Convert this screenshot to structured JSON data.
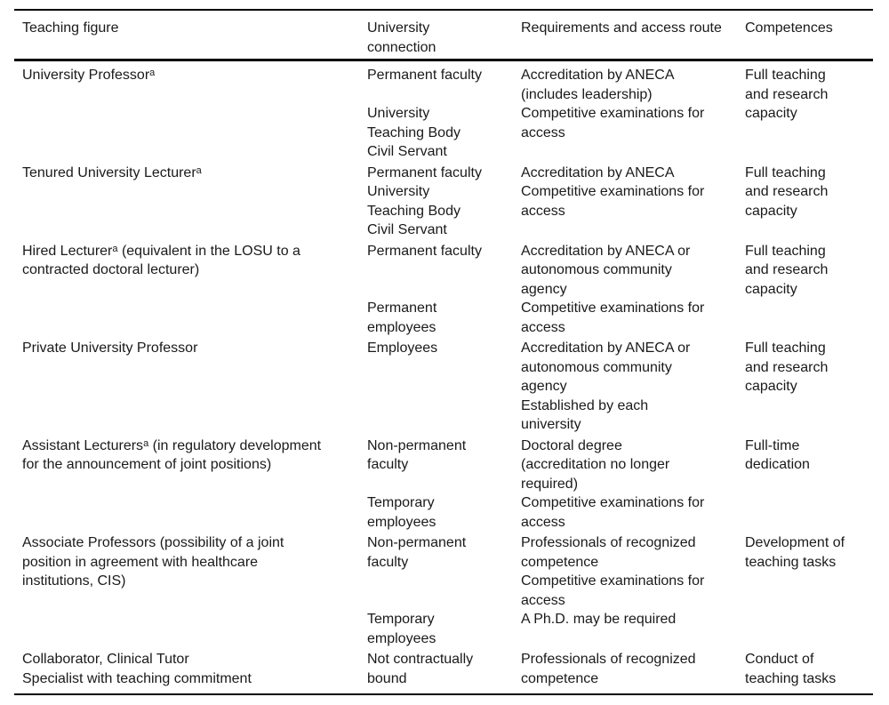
{
  "colors": {
    "background": "#ffffff",
    "text": "#1a1a1a",
    "rule": "#000000"
  },
  "table": {
    "headers": {
      "teaching_figure": [
        "Teaching figure"
      ],
      "university_connection": [
        "University",
        "connection"
      ],
      "requirements": [
        "Requirements and access route"
      ],
      "competences": [
        "Competences"
      ]
    },
    "footnote_marker": "a",
    "rows": [
      {
        "figure": [
          "University Professor^a"
        ],
        "groups": [
          {
            "connection": [
              "Permanent faculty"
            ],
            "requirements": [
              "Accreditation by ANECA",
              "(includes leadership)"
            ]
          },
          {
            "connection": [
              "University",
              "Teaching Body",
              "Civil Servant"
            ],
            "requirements": [
              "Competitive examinations for",
              "access"
            ]
          }
        ],
        "competences": [
          "Full teaching",
          "and research",
          "capacity"
        ]
      },
      {
        "figure": [
          "Tenured University Lecturer^a"
        ],
        "groups": [
          {
            "connection": [
              "Permanent faculty"
            ],
            "requirements": [
              "Accreditation by ANECA"
            ]
          },
          {
            "connection": [
              "University",
              "Teaching Body",
              "Civil Servant"
            ],
            "requirements": [
              "Competitive examinations for",
              "access"
            ]
          }
        ],
        "competences": [
          "Full teaching",
          "and research",
          "capacity"
        ]
      },
      {
        "figure": [
          "Hired Lecturer^a (equivalent in the LOSU to a",
          "contracted doctoral lecturer)"
        ],
        "groups": [
          {
            "connection": [
              "Permanent faculty"
            ],
            "requirements": [
              "Accreditation by ANECA or",
              "autonomous community",
              "agency"
            ]
          },
          {
            "connection": [
              "Permanent",
              "employees"
            ],
            "requirements": [
              "Competitive examinations for",
              "access"
            ]
          }
        ],
        "competences": [
          "Full teaching",
          "and research",
          "capacity"
        ]
      },
      {
        "figure": [
          "Private University Professor"
        ],
        "groups": [
          {
            "connection": [
              "Employees"
            ],
            "requirements": [
              "Accreditation by ANECA or",
              "autonomous community",
              "agency"
            ]
          },
          {
            "connection": [],
            "requirements": [
              "Established by each",
              "university"
            ]
          }
        ],
        "competences": [
          "Full teaching",
          "and research",
          "capacity"
        ]
      },
      {
        "figure": [
          "Assistant Lecturers^a (in regulatory development",
          "for the announcement of joint positions)"
        ],
        "groups": [
          {
            "connection": [
              "Non-permanent",
              "faculty"
            ],
            "requirements": [
              "Doctoral degree",
              "(accreditation no longer",
              "required)"
            ]
          },
          {
            "connection": [
              "Temporary",
              "employees"
            ],
            "requirements": [
              "Competitive examinations for",
              "access"
            ]
          }
        ],
        "competences": [
          "Full-time",
          "dedication"
        ]
      },
      {
        "figure": [
          "Associate Professors (possibility of a joint",
          "position in agreement with healthcare",
          "institutions, CIS)"
        ],
        "groups": [
          {
            "connection": [
              "Non-permanent",
              "faculty"
            ],
            "requirements": [
              "Professionals of recognized",
              "competence",
              "Competitive examinations for",
              "access"
            ]
          },
          {
            "connection": [
              "Temporary",
              "employees"
            ],
            "requirements": [
              "A Ph.D. may be required"
            ]
          }
        ],
        "competences": [
          "Development of",
          "teaching tasks"
        ]
      },
      {
        "figure": [
          "Collaborator, Clinical Tutor",
          "Specialist with teaching commitment"
        ],
        "groups": [
          {
            "connection": [
              "Not contractually",
              "bound"
            ],
            "requirements": [
              "Professionals of recognized",
              "competence"
            ]
          }
        ],
        "competences": [
          "Conduct of",
          "teaching tasks"
        ]
      }
    ]
  }
}
